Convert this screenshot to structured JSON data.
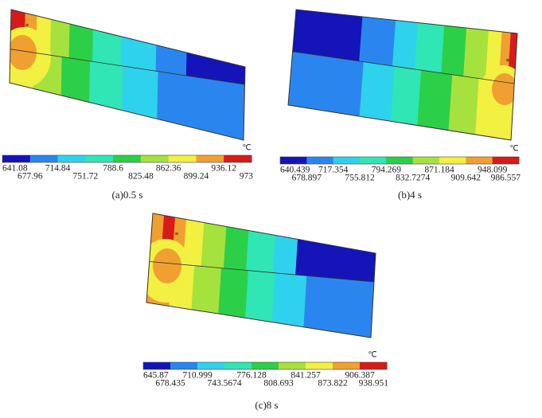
{
  "panels": [
    {
      "unit": "℃",
      "legend": [
        "641.08",
        "677.96",
        "714.84",
        "751.72",
        "788.6",
        "825.48",
        "862.36",
        "899.24",
        "936.12",
        "973"
      ],
      "caption": "(a)0.5 s"
    },
    {
      "unit": "℃",
      "legend": [
        "640.439",
        "678.897",
        "717.354",
        "755.812",
        "794.269",
        "832.7274",
        "871.184",
        "909.642",
        "948.099",
        "986.557"
      ],
      "caption": "(b)4 s"
    },
    {
      "unit": "℃",
      "legend": [
        "645.87",
        "678.435",
        "710.999",
        "743.5674",
        "776.128",
        "808.693",
        "841.257",
        "873.822",
        "906.387",
        "938.951"
      ],
      "caption": "(c)8 s"
    }
  ]
}
